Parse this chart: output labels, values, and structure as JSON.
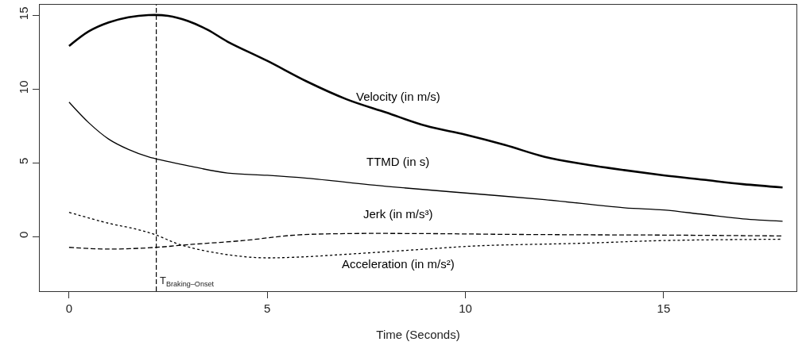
{
  "chart_data": {
    "type": "line",
    "xlabel": "Time (Seconds)",
    "xlim": [
      -0.74,
      18.35
    ],
    "ylim": [
      -3.7,
      15.7
    ],
    "xticks": [
      0,
      5,
      10,
      15
    ],
    "yticks": [
      0,
      5,
      10,
      15
    ],
    "legend": false,
    "marker": "none",
    "series": [
      {
        "name": "Velocity (in m/s)",
        "color": "#000000",
        "line_style": "solid",
        "x": [
          0,
          0.5,
          1,
          1.5,
          2,
          2.5,
          3,
          3.5,
          4,
          5,
          6,
          7,
          8,
          9,
          10,
          11,
          12,
          13,
          14,
          15,
          16,
          17,
          18
        ],
        "values": [
          12.9,
          13.9,
          14.5,
          14.85,
          15.0,
          14.95,
          14.6,
          14.0,
          13.2,
          11.9,
          10.5,
          9.3,
          8.4,
          7.5,
          6.9,
          6.2,
          5.4,
          4.9,
          4.5,
          4.15,
          3.85,
          3.55,
          3.33
        ]
      },
      {
        "name": "TTMD (in s)",
        "color": "#000000",
        "line_style": "solid",
        "x": [
          0,
          0.5,
          1,
          1.5,
          2,
          3,
          4,
          5,
          6,
          8,
          10,
          12,
          14,
          15,
          16,
          17,
          18
        ],
        "values": [
          9.1,
          7.7,
          6.6,
          5.9,
          5.4,
          4.8,
          4.3,
          4.15,
          3.95,
          3.4,
          2.95,
          2.5,
          1.95,
          1.8,
          1.5,
          1.2,
          1.04
        ]
      },
      {
        "name": "Jerk (in m/s³)",
        "color": "#000000",
        "line_style": "dashed",
        "x": [
          0,
          1,
          2.2,
          3,
          4.4,
          5.7,
          7,
          9,
          11,
          13,
          15,
          18
        ],
        "values": [
          -0.73,
          -0.85,
          -0.73,
          -0.55,
          -0.27,
          0.1,
          0.2,
          0.2,
          0.15,
          0.12,
          0.1,
          0.04
        ]
      },
      {
        "name": "Acceleration (in m/s²)",
        "color": "#000000",
        "line_style": "dotted",
        "x": [
          0,
          1,
          1.7,
          2.2,
          2.8,
          3.7,
          4.7,
          5.7,
          7,
          9,
          10.3,
          13,
          15,
          18
        ],
        "values": [
          1.64,
          0.9,
          0.5,
          0.1,
          -0.55,
          -1.1,
          -1.42,
          -1.4,
          -1.2,
          -0.85,
          -0.63,
          -0.45,
          -0.27,
          -0.18
        ]
      }
    ],
    "ref_lines": [
      {
        "axis": "x",
        "value": 2.2,
        "label": "T$_{Braking–Onset}$",
        "line_style": "dashed",
        "color": "#000000"
      }
    ]
  }
}
